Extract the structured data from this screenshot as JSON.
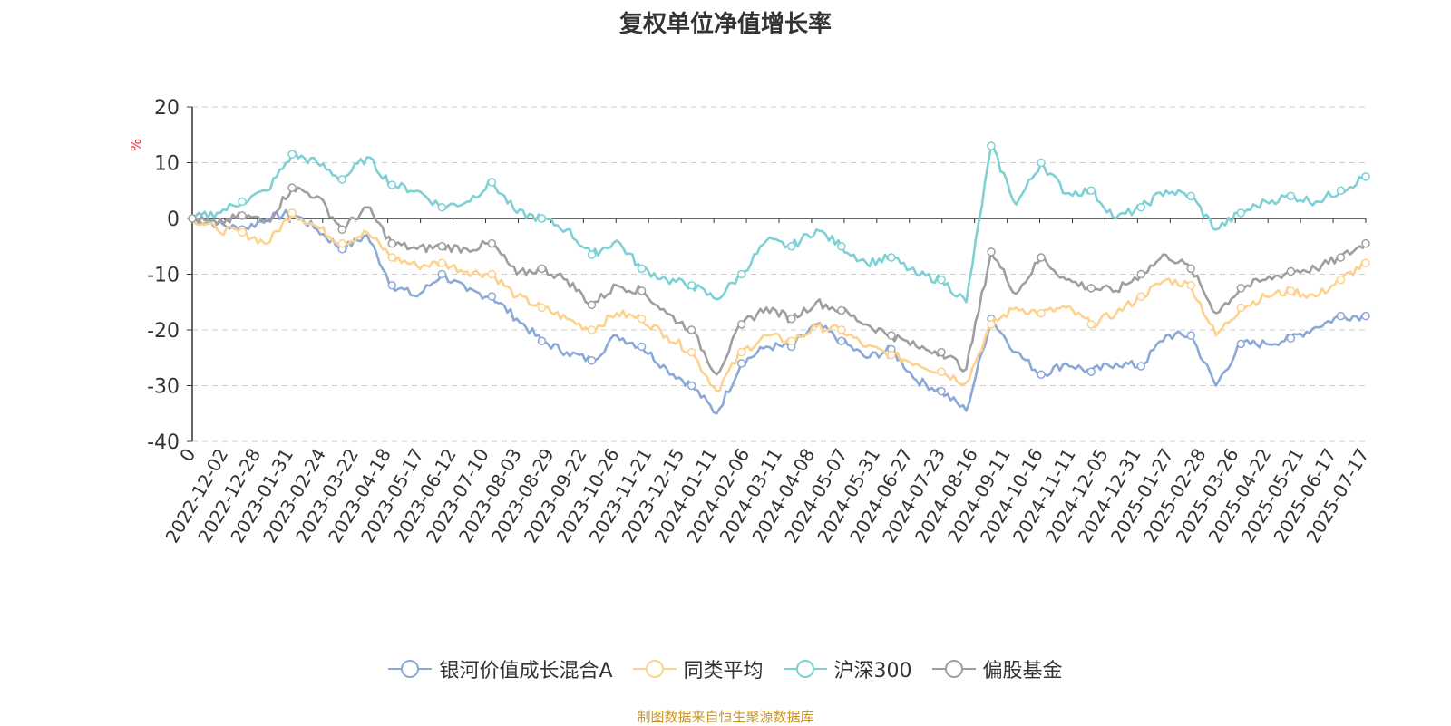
{
  "chart_data": {
    "type": "line",
    "title": "复权单位净值增长率",
    "ylabel": "%",
    "ylim": [
      -40,
      20
    ],
    "yticks": [
      20,
      10,
      0,
      -10,
      -20,
      -30,
      -40
    ],
    "grid": true,
    "legend_position": "bottom",
    "x_tick_labels": [
      "0",
      "2022-12-02",
      "2022-12-28",
      "2023-01-31",
      "2023-02-24",
      "2023-03-22",
      "2023-04-18",
      "2023-05-17",
      "2023-06-12",
      "2023-07-10",
      "2023-08-03",
      "2023-08-29",
      "2023-09-22",
      "2023-10-26",
      "2023-11-21",
      "2023-12-15",
      "2024-01-11",
      "2024-02-06",
      "2024-03-11",
      "2024-04-08",
      "2024-05-07",
      "2024-05-31",
      "2024-06-27",
      "2024-07-23",
      "2024-08-16",
      "2024-09-11",
      "2024-10-16",
      "2024-11-11",
      "2024-12-05",
      "2024-12-31",
      "2025-01-27",
      "2025-02-28",
      "2025-03-26",
      "2025-04-22",
      "2025-05-21",
      "2025-06-17",
      "2025-07-17"
    ],
    "series": [
      {
        "name": "银河价值成长混合A",
        "color": "#8aa8d8",
        "values": [
          0,
          -1,
          -2,
          0,
          1,
          -2,
          -5.5,
          -3,
          -12,
          -14,
          -10,
          -13,
          -14,
          -18,
          -22,
          -24,
          -25.5,
          -21,
          -23,
          -27,
          -30,
          -35,
          -26,
          -23,
          -23,
          -19,
          -22,
          -25,
          -23.5,
          -29,
          -31,
          -34.5,
          -18,
          -24,
          -28,
          -26,
          -27.5,
          -26,
          -26.5,
          -21,
          -21,
          -30,
          -22.5,
          -22.5,
          -21.5,
          -19.5,
          -17.5,
          -17.5
        ]
      },
      {
        "name": "同类平均",
        "color": "#fdd28d",
        "values": [
          0,
          -2,
          -2.5,
          -4.5,
          1,
          -1.5,
          -4.5,
          -2.5,
          -7,
          -8.5,
          -8,
          -9.5,
          -10,
          -14,
          -16,
          -18,
          -20,
          -17,
          -18,
          -21,
          -24,
          -31,
          -24,
          -21,
          -22,
          -19.5,
          -20,
          -23,
          -24.5,
          -26,
          -27.5,
          -29.5,
          -19,
          -16,
          -17,
          -16,
          -19,
          -17,
          -14,
          -11,
          -12,
          -21,
          -16,
          -14,
          -13,
          -14,
          -11,
          -8
        ]
      },
      {
        "name": "沪深300",
        "color": "#7dd0d4",
        "values": [
          0,
          1,
          3,
          5,
          11.5,
          10,
          7,
          11,
          6,
          5,
          2,
          3,
          6.5,
          1,
          0,
          -2,
          -6.5,
          -4,
          -9,
          -11,
          -12,
          -14.5,
          -10,
          -4,
          -5,
          -2,
          -5,
          -8,
          -7,
          -10,
          -11,
          -15,
          13,
          2.5,
          10,
          4.5,
          5,
          0,
          2,
          5,
          4,
          -2,
          1,
          3,
          4,
          3,
          5,
          7.5
        ]
      },
      {
        "name": "偏股基金",
        "color": "#9e9e9e",
        "values": [
          0,
          -1,
          0.5,
          -0.5,
          5.5,
          4,
          -2,
          2,
          -4.5,
          -5.5,
          -5,
          -5.5,
          -4.5,
          -10,
          -9,
          -11,
          -15.5,
          -12,
          -13,
          -17,
          -20,
          -28,
          -19,
          -16,
          -18,
          -15,
          -16.5,
          -19,
          -21,
          -23,
          -24,
          -27,
          -6,
          -13.5,
          -7,
          -11,
          -12.5,
          -13,
          -10,
          -6.5,
          -9,
          -17,
          -12.5,
          -11,
          -9.5,
          -9,
          -7,
          -4.5
        ]
      }
    ]
  },
  "source_note": "制图数据来自恒生聚源数据库"
}
